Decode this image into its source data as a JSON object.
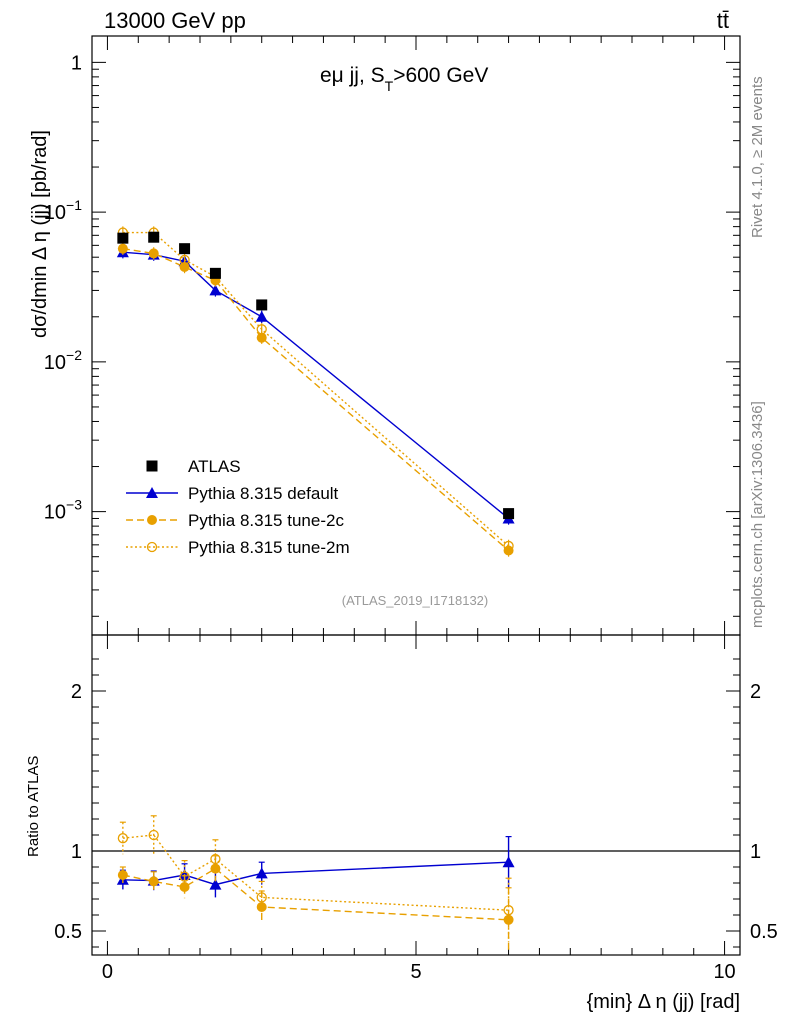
{
  "header": {
    "energy_label": "13000 GeV pp",
    "process_label": "tt̄",
    "plot_title_main": "eμ jj, S",
    "plot_title_sub": "T",
    "plot_title_tail": ">600 GeV",
    "analysis_id": "(ATLAS_2019_I1718132)"
  },
  "side_labels": {
    "rivet": "Rivet 4.1.0, ≥ 2M events",
    "mcplots": "mcplots.cern.ch [arXiv:1306.3436]"
  },
  "chart_data": {
    "type": "line",
    "title": "eμ jj, S_T>600 GeV",
    "xlabel": "{min} Δ η (jj) [rad]",
    "ylabel": "dσ/dmin Δ η (jj) [pb/rad]",
    "ratio_ylabel": "Ratio to ATLAS",
    "xlim": [
      -0.25,
      10.25
    ],
    "ylim": [
      0.00015,
      1.5
    ],
    "ratio_ylim": [
      0.35,
      2.35
    ],
    "x_ticks": [
      0,
      5,
      10
    ],
    "x_tick_labels": [
      "0",
      "5",
      "10"
    ],
    "y_ticks": [
      1,
      0.1,
      0.01,
      0.001
    ],
    "y_tick_labels": [
      {
        "base": "1",
        "exp": ""
      },
      {
        "base": "10",
        "exp": "−1"
      },
      {
        "base": "10",
        "exp": "−2"
      },
      {
        "base": "10",
        "exp": "−3"
      }
    ],
    "ratio_ticks": [
      2,
      1,
      0.5
    ],
    "ratio_tick_labels": [
      "2",
      "1",
      "0.5"
    ],
    "x": [
      0.25,
      0.75,
      1.25,
      1.75,
      2.5,
      6.5
    ],
    "series": [
      {
        "name": "ATLAS",
        "legend": "ATLAS",
        "color": "#000000",
        "style": "data",
        "values": [
          0.067,
          0.068,
          0.057,
          0.039,
          0.024,
          0.00097
        ],
        "ratio": [
          1,
          1,
          1,
          1,
          1,
          1
        ],
        "ratio_err": [
          0,
          0,
          0,
          0,
          0,
          0
        ]
      },
      {
        "name": "Pythia 8.315 default",
        "legend": "Pythia 8.315 default",
        "color": "#0000d0",
        "style": "solid",
        "values": [
          0.054,
          0.052,
          0.047,
          0.03,
          0.02,
          0.0009
        ],
        "ratio": [
          0.82,
          0.815,
          0.85,
          0.79,
          0.86,
          0.93
        ],
        "ratio_err": [
          0.06,
          0.06,
          0.07,
          0.08,
          0.07,
          0.16
        ]
      },
      {
        "name": "Pythia 8.315 tune-2c",
        "legend": "Pythia 8.315 tune-2c",
        "color": "#e8a000",
        "style": "dashed",
        "values": [
          0.057,
          0.053,
          0.043,
          0.035,
          0.0145,
          0.00055
        ],
        "ratio": [
          0.85,
          0.81,
          0.775,
          0.89,
          0.65,
          0.57
        ],
        "ratio_err": [
          0.05,
          0.06,
          0.07,
          0.08,
          0.1,
          0.2
        ]
      },
      {
        "name": "Pythia 8.315 tune-2m",
        "legend": "Pythia 8.315 tune-2m",
        "color": "#e8a000",
        "style": "dotted",
        "values": [
          0.073,
          0.073,
          0.048,
          0.037,
          0.0165,
          0.00059
        ],
        "ratio": [
          1.08,
          1.1,
          0.84,
          0.95,
          0.71,
          0.63
        ],
        "ratio_err": [
          0.1,
          0.12,
          0.1,
          0.12,
          0.1,
          0.2
        ]
      }
    ]
  }
}
